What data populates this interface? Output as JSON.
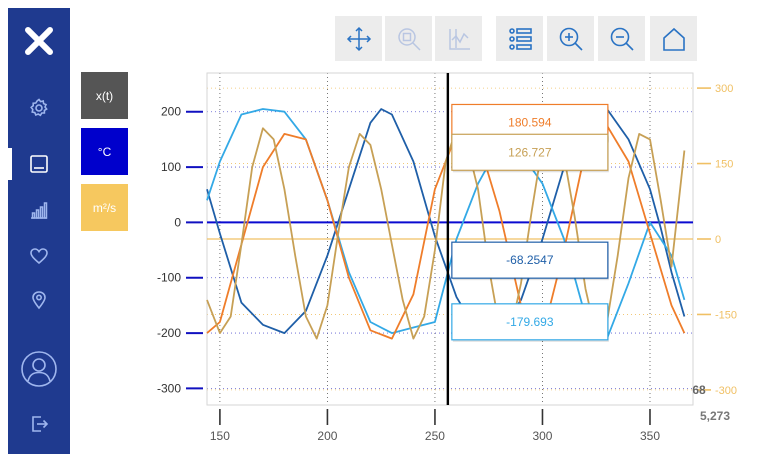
{
  "toolbar": {
    "buttons": [
      {
        "name": "pan-button",
        "icon": "move-icon",
        "enabled": true
      },
      {
        "name": "zoom-region-button",
        "icon": "zoom-region-icon",
        "enabled": false
      },
      {
        "name": "auto-scale-button",
        "icon": "axis-fit-icon",
        "enabled": false
      },
      {
        "name": "legend-list-button",
        "icon": "list-icon",
        "enabled": true
      },
      {
        "name": "zoom-in-button",
        "icon": "zoom-in-icon",
        "enabled": true
      },
      {
        "name": "zoom-out-button",
        "icon": "zoom-out-icon",
        "enabled": true
      },
      {
        "name": "reset-home-button",
        "icon": "home-icon",
        "enabled": true
      }
    ]
  },
  "units": {
    "items": [
      {
        "label": "x(t)",
        "bg": "#555555",
        "fg": "#ffffff"
      },
      {
        "label": "°C",
        "bg": "#0000cc",
        "fg": "#ffffff"
      },
      {
        "label": "m²/s",
        "bg": "#f6c85f",
        "fg": "#ffffff"
      }
    ]
  },
  "colors": {
    "primary_axis": "#2323b0",
    "secondary_axis": "#f0c064",
    "grid": "#9aa0b8",
    "cursor": "#000000",
    "sidebar": "#1f3a8f",
    "series_dark_blue": "#1f5fa8",
    "series_light_blue": "#33a9e6",
    "series_orange": "#ef7d2a",
    "series_tan": "#c7a055"
  },
  "chart_data": {
    "type": "line",
    "xlim": [
      144,
      370
    ],
    "ylim": [
      -330,
      270
    ],
    "y2lim": [
      -330,
      330
    ],
    "x_ticks": [
      150,
      200,
      250,
      300,
      350
    ],
    "y_ticks": [
      200,
      100,
      0,
      -100,
      -200,
      -300
    ],
    "y2_ticks": [
      300,
      150,
      0,
      -150,
      -300
    ],
    "x_tick_labels": [
      "150",
      "200",
      "250",
      "300",
      "350"
    ],
    "y_tick_labels": [
      "200",
      "100",
      "0",
      "-100",
      "-200",
      "-300"
    ],
    "y2_tick_labels": [
      "300",
      "150",
      "0",
      "-150",
      "-300"
    ],
    "baseline_primary": 0,
    "baseline_secondary": 0,
    "cursor_x": 256,
    "cursor_readout_x": "5,273",
    "cursor_readout_y": "68",
    "readouts": [
      {
        "value": "180.594",
        "color": "#ef7d2a",
        "y_data": 180.594
      },
      {
        "value": "126.727",
        "color": "#c7a055",
        "y_data": 126.727
      },
      {
        "value": "-68.2547",
        "color": "#1f5fa8",
        "y_data": -68.2547
      },
      {
        "value": "-179.693",
        "color": "#33a9e6",
        "y_data": -179.693
      }
    ],
    "series": [
      {
        "color": "#1f5fa8",
        "axis": "primary",
        "x": [
          144,
          150,
          160,
          170,
          180,
          190,
          200,
          210,
          220,
          225,
          230,
          240,
          250,
          260,
          270,
          280,
          290,
          300,
          310,
          320,
          330,
          340,
          350,
          355,
          360,
          366
        ],
        "y": [
          60,
          -20,
          -145,
          -185,
          -200,
          -160,
          -60,
          60,
          180,
          205,
          195,
          110,
          -25,
          -135,
          -200,
          -200,
          -140,
          -30,
          100,
          195,
          205,
          150,
          60,
          -10,
          -90,
          -170
        ]
      },
      {
        "color": "#33a9e6",
        "axis": "primary",
        "x": [
          144,
          150,
          160,
          170,
          180,
          190,
          200,
          210,
          220,
          230,
          240,
          250,
          260,
          270,
          280,
          290,
          300,
          310,
          320,
          330,
          340,
          350,
          360,
          366
        ],
        "y": [
          40,
          110,
          195,
          205,
          200,
          150,
          40,
          -90,
          -180,
          -200,
          -190,
          -180,
          -30,
          70,
          140,
          125,
          70,
          -30,
          -170,
          -210,
          -110,
          0,
          -60,
          -140
        ]
      },
      {
        "color": "#ef7d2a",
        "axis": "primary",
        "x": [
          144,
          150,
          160,
          170,
          180,
          190,
          200,
          210,
          220,
          230,
          240,
          250,
          260,
          270,
          280,
          290,
          300,
          310,
          320,
          330,
          340,
          350,
          360,
          366
        ],
        "y": [
          -200,
          -180,
          -40,
          100,
          160,
          150,
          40,
          -100,
          -195,
          -210,
          -130,
          60,
          160,
          150,
          20,
          -150,
          -205,
          -50,
          130,
          175,
          110,
          -20,
          -150,
          -200
        ]
      },
      {
        "color": "#c7a055",
        "axis": "primary",
        "x": [
          144,
          150,
          155,
          160,
          165,
          170,
          175,
          180,
          185,
          190,
          195,
          200,
          205,
          210,
          215,
          220,
          225,
          230,
          235,
          240,
          245,
          250,
          255,
          260,
          265,
          270,
          275,
          280,
          285,
          290,
          295,
          300,
          305,
          310,
          315,
          320,
          325,
          330,
          335,
          340,
          345,
          350,
          355,
          360,
          366
        ],
        "y": [
          -140,
          -200,
          -170,
          -40,
          100,
          170,
          150,
          60,
          -60,
          -170,
          -210,
          -150,
          -20,
          100,
          160,
          140,
          60,
          -40,
          -140,
          -210,
          -170,
          -50,
          110,
          170,
          140,
          60,
          -80,
          -190,
          -200,
          -110,
          20,
          140,
          175,
          120,
          10,
          -120,
          -205,
          -180,
          -60,
          80,
          160,
          150,
          40,
          -80,
          130
        ]
      }
    ]
  }
}
